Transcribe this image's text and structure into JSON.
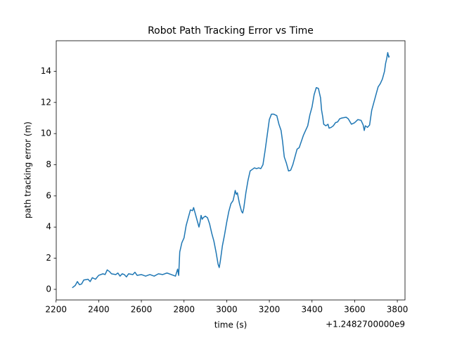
{
  "chart_data": {
    "type": "line",
    "title": "Robot Path Tracking Error vs Time",
    "x_label": "time (s)",
    "y_label": "path tracking error (m)",
    "x_offset_label": "+1.2482700000e9",
    "xlim": [
      2201,
      3836
    ],
    "ylim": [
      -0.68,
      15.96
    ],
    "xticks": [
      2200,
      2400,
      2600,
      2800,
      3000,
      3200,
      3400,
      3600,
      3800
    ],
    "yticks": [
      0,
      2,
      4,
      6,
      8,
      10,
      12,
      14
    ],
    "grid": false,
    "series": [
      {
        "color": "#1f77b4",
        "x": [
          2276,
          2290,
          2300,
          2310,
          2320,
          2330,
          2350,
          2360,
          2370,
          2385,
          2400,
          2420,
          2430,
          2440,
          2450,
          2460,
          2480,
          2490,
          2500,
          2510,
          2520,
          2530,
          2540,
          2560,
          2570,
          2580,
          2600,
          2620,
          2640,
          2660,
          2680,
          2700,
          2720,
          2740,
          2760,
          2770,
          2775,
          2780,
          2790,
          2800,
          2810,
          2820,
          2830,
          2840,
          2845,
          2850,
          2860,
          2870,
          2875,
          2880,
          2885,
          2890,
          2900,
          2910,
          2920,
          2930,
          2940,
          2950,
          2960,
          2965,
          2970,
          2980,
          2990,
          3000,
          3010,
          3020,
          3030,
          3035,
          3040,
          3045,
          3050,
          3060,
          3070,
          3075,
          3080,
          3090,
          3100,
          3110,
          3120,
          3130,
          3140,
          3150,
          3160,
          3170,
          3180,
          3190,
          3200,
          3210,
          3220,
          3235,
          3245,
          3255,
          3262,
          3270,
          3280,
          3290,
          3300,
          3310,
          3320,
          3330,
          3340,
          3350,
          3360,
          3370,
          3380,
          3390,
          3400,
          3410,
          3420,
          3430,
          3440,
          3445,
          3450,
          3455,
          3465,
          3475,
          3480,
          3490,
          3500,
          3510,
          3520,
          3530,
          3540,
          3560,
          3570,
          3585,
          3600,
          3615,
          3630,
          3640,
          3645,
          3650,
          3660,
          3670,
          3680,
          3690,
          3700,
          3710,
          3720,
          3730,
          3740,
          3745,
          3750,
          3755,
          3760,
          3762
        ],
        "values": [
          0.1,
          0.25,
          0.5,
          0.3,
          0.35,
          0.6,
          0.65,
          0.5,
          0.75,
          0.65,
          0.9,
          1.0,
          0.95,
          1.25,
          1.15,
          1.0,
          0.95,
          1.05,
          0.85,
          1.0,
          0.95,
          0.8,
          1.0,
          0.95,
          1.1,
          0.9,
          0.95,
          0.85,
          0.95,
          0.85,
          1.0,
          0.95,
          1.05,
          0.95,
          0.85,
          1.3,
          0.9,
          2.4,
          3.0,
          3.3,
          4.1,
          4.6,
          5.1,
          5.05,
          5.25,
          5.0,
          4.5,
          4.0,
          4.3,
          4.75,
          4.5,
          4.6,
          4.7,
          4.6,
          4.2,
          3.6,
          3.1,
          2.4,
          1.6,
          1.4,
          1.8,
          2.8,
          3.5,
          4.3,
          5.0,
          5.5,
          5.7,
          6.0,
          6.35,
          6.1,
          6.2,
          5.5,
          5.0,
          4.9,
          5.2,
          6.2,
          7.0,
          7.6,
          7.7,
          7.8,
          7.75,
          7.8,
          7.75,
          8.0,
          8.9,
          9.9,
          10.9,
          11.25,
          11.25,
          11.15,
          10.6,
          10.2,
          9.5,
          8.5,
          8.1,
          7.6,
          7.65,
          8.0,
          8.5,
          9.0,
          9.1,
          9.5,
          9.9,
          10.2,
          10.5,
          11.2,
          11.7,
          12.5,
          12.95,
          12.9,
          12.3,
          11.5,
          11.1,
          10.6,
          10.5,
          10.6,
          10.35,
          10.4,
          10.5,
          10.7,
          10.75,
          10.95,
          11.0,
          11.05,
          10.95,
          10.6,
          10.7,
          10.9,
          10.85,
          10.55,
          10.2,
          10.5,
          10.4,
          10.55,
          11.5,
          12.0,
          12.5,
          13.0,
          13.2,
          13.5,
          14.0,
          14.5,
          14.8,
          15.2,
          14.9,
          15.0
        ]
      }
    ]
  }
}
